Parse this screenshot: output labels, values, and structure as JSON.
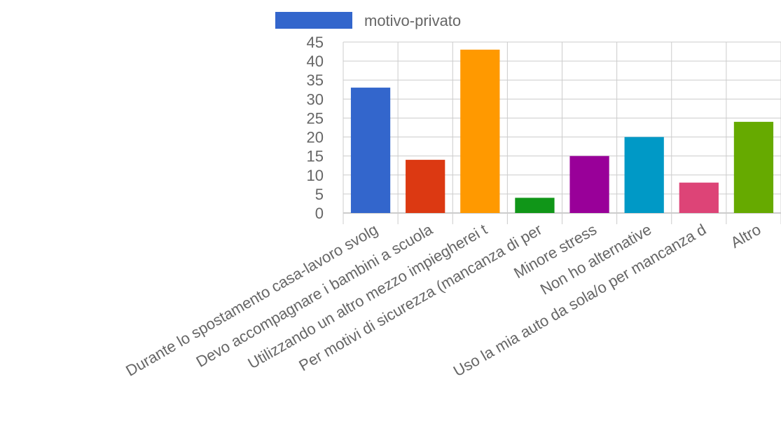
{
  "chart_data": {
    "type": "bar",
    "categories": [
      "Durante lo spostamento casa-lavoro svolg",
      "Devo accompagnare i bambini a scuola",
      "Utilizzando un altro mezzo impiegherei t",
      "Per motivi di sicurezza (mancanza di per",
      "Minore stress",
      "Non ho alternative",
      "Uso la mia auto da sola/o per mancanza d",
      "Altro"
    ],
    "series": [
      {
        "name": "motivo-privato",
        "values": [
          33,
          14,
          43,
          4,
          15,
          20,
          8,
          24
        ]
      }
    ],
    "bar_colors": [
      "#3366cc",
      "#dc3912",
      "#ff9900",
      "#109618",
      "#990099",
      "#0099c6",
      "#dd4477",
      "#66aa00"
    ],
    "legend_color": "#3366cc",
    "ylim": [
      0,
      45
    ],
    "yticks": [
      0,
      5,
      10,
      15,
      20,
      25,
      30,
      35,
      40,
      45
    ],
    "grid": true,
    "legend_position": "top",
    "title": "",
    "xlabel": "",
    "ylabel": ""
  }
}
